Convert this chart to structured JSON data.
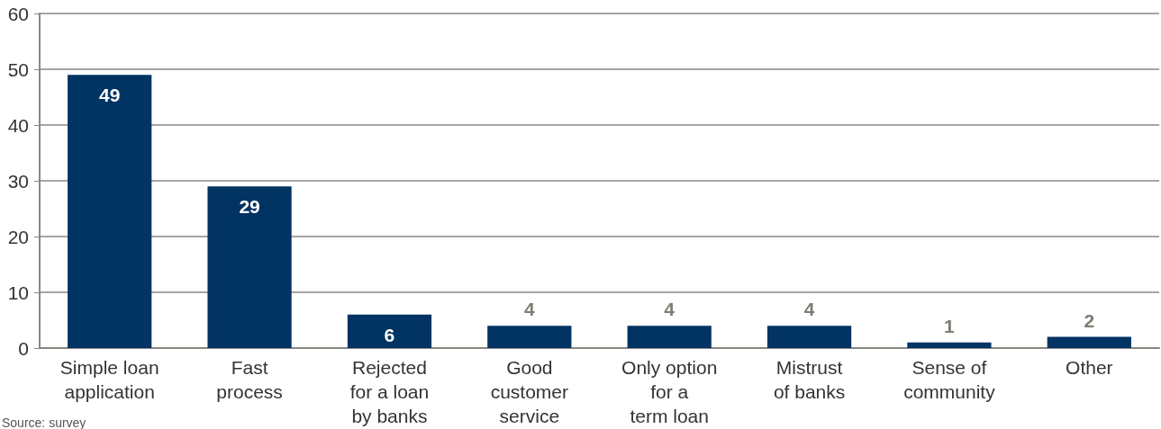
{
  "chart_data": {
    "type": "bar",
    "categories": [
      "Simple loan\napplication",
      "Fast\nprocess",
      "Rejected\nfor a loan\nby banks",
      "Good\ncustomer\nservice",
      "Only option\nfor a\nterm loan",
      "Mistrust\nof banks",
      "Sense of\ncommunity",
      "Other"
    ],
    "values": [
      49,
      29,
      6,
      4,
      4,
      4,
      1,
      2
    ],
    "color": "#013363",
    "ylim": [
      0,
      60
    ],
    "yticks": [
      0,
      10,
      20,
      30,
      40,
      50,
      60
    ],
    "grid": "y",
    "data_labels": true,
    "annotations": [
      "Source: survey"
    ]
  }
}
